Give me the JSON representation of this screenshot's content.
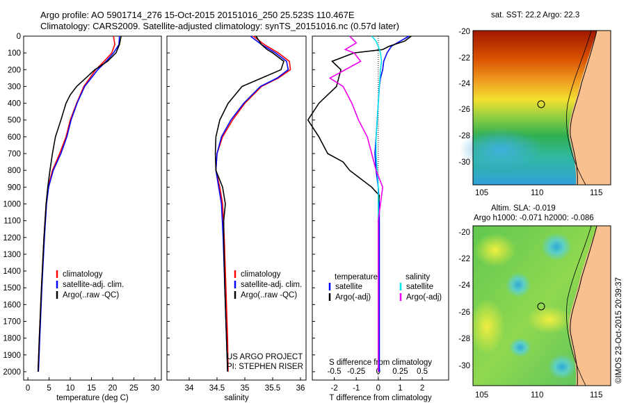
{
  "header": {
    "line1": "Argo profile: AO 5901714_276 15-Oct-2015 20151016_250 25.523S 110.467E",
    "line2": "Climatology: CARS2009. Satellite-adjusted climatology: synTS_20151016.nc (0.57d later)"
  },
  "depth_ticks": [
    "0",
    "100",
    "200",
    "300",
    "400",
    "500",
    "600",
    "700",
    "800",
    "900",
    "1000",
    "1100",
    "1200",
    "1300",
    "1400",
    "1500",
    "1600",
    "1700",
    "1800",
    "1900",
    "2000"
  ],
  "colors": {
    "climatology": "#ff0000",
    "satellite": "#0000ff",
    "argo": "#000000",
    "sal_sat": "#00e5ee",
    "sal_argo": "#ee00ee"
  },
  "chart_data": [
    {
      "type": "line",
      "name": "temperature-panel",
      "xlabel": "temperature (deg C)",
      "xlim": [
        -1,
        31.5
      ],
      "ylim": [
        2050,
        0
      ],
      "xticks": [
        "0",
        "5",
        "10",
        "15",
        "20",
        "25",
        "30"
      ],
      "xtick_values": [
        0,
        5,
        10,
        15,
        20,
        25,
        30
      ],
      "legend": [
        "climatology",
        "satellite-adj. clim.",
        "Argo(..raw -QC)"
      ],
      "series": [
        {
          "name": "climatology",
          "depth": [
            0,
            50,
            100,
            150,
            200,
            300,
            400,
            500,
            600,
            700,
            800,
            900,
            1000,
            1200,
            1500,
            1800,
            2000
          ],
          "values": [
            20.2,
            20.5,
            19.8,
            18.0,
            16.0,
            13.2,
            11.5,
            10.0,
            9.0,
            7.5,
            5.8,
            4.8,
            4.3,
            3.8,
            3.2,
            2.7,
            2.4
          ]
        },
        {
          "name": "satellite-adj. clim.",
          "depth": [
            0,
            50,
            100,
            150,
            200,
            300,
            400,
            500,
            600,
            700,
            800,
            900,
            1000,
            1200,
            1500,
            1800,
            2000
          ],
          "values": [
            21.6,
            21.5,
            20.2,
            18.5,
            16.5,
            13.4,
            11.6,
            10.2,
            9.2,
            7.8,
            6.0,
            4.9,
            4.4,
            3.9,
            3.3,
            2.8,
            2.5
          ]
        },
        {
          "name": "Argo(..raw -QC)",
          "depth": [
            0,
            50,
            100,
            150,
            200,
            300,
            350,
            400,
            500,
            600,
            700,
            800,
            900,
            1000,
            1200,
            1500,
            1800,
            2000
          ],
          "values": [
            22.0,
            21.6,
            20.8,
            18.8,
            15.8,
            11.5,
            10.0,
            9.0,
            7.8,
            6.5,
            5.8,
            5.2,
            4.7,
            4.3,
            3.8,
            3.2,
            2.7,
            2.4
          ]
        }
      ]
    },
    {
      "type": "line",
      "name": "salinity-panel",
      "xlabel": "salinity",
      "xlim": [
        33.6,
        36.1
      ],
      "ylim": [
        2050,
        0
      ],
      "xticks": [
        "34",
        "34.5",
        "35",
        "35.5",
        "36"
      ],
      "xtick_values": [
        34,
        34.5,
        35,
        35.5,
        36
      ],
      "legend": [
        "climatology",
        "satellite-adj. clim.",
        "Argo(..raw -QC)"
      ],
      "annotations": [
        "US ARGO PROJECT",
        "PI: STEPHEN RISER"
      ],
      "series": [
        {
          "name": "climatology",
          "depth": [
            0,
            50,
            100,
            150,
            200,
            250,
            300,
            400,
            500,
            600,
            700,
            800,
            900,
            1000,
            1200,
            1500,
            1800,
            2000
          ],
          "values": [
            35.15,
            35.35,
            35.6,
            35.8,
            35.82,
            35.6,
            35.3,
            35.0,
            34.78,
            34.6,
            34.5,
            34.48,
            34.55,
            34.6,
            34.63,
            34.66,
            34.69,
            34.7
          ]
        },
        {
          "name": "satellite-adj. clim.",
          "depth": [
            0,
            50,
            100,
            150,
            200,
            250,
            300,
            400,
            500,
            600,
            700,
            800,
            900,
            1000,
            1200,
            1500,
            1800,
            2000
          ],
          "values": [
            35.1,
            35.3,
            35.55,
            35.75,
            35.78,
            35.58,
            35.28,
            34.98,
            34.75,
            34.58,
            34.5,
            34.48,
            34.53,
            34.58,
            34.61,
            34.64,
            34.67,
            34.69
          ]
        },
        {
          "name": "Argo(..raw -QC)",
          "depth": [
            0,
            50,
            80,
            100,
            150,
            200,
            250,
            300,
            400,
            500,
            600,
            700,
            800,
            900,
            1000,
            1100,
            1200,
            1500,
            1800,
            2000
          ],
          "values": [
            35.2,
            35.3,
            35.4,
            35.5,
            35.7,
            35.65,
            35.3,
            34.95,
            34.7,
            34.55,
            34.48,
            34.47,
            34.48,
            34.6,
            34.65,
            34.62,
            34.62,
            34.64,
            34.67,
            34.69
          ]
        }
      ]
    },
    {
      "type": "line",
      "name": "difference-panel",
      "xlabel": "T difference from climatology",
      "xlabel_top": "S difference from climatology",
      "xlim": [
        -3,
        3.2
      ],
      "ylim": [
        2050,
        0
      ],
      "xticks": [
        "-2",
        "-1",
        "0",
        "1",
        "2"
      ],
      "xtick_values": [
        -2,
        -1,
        0,
        1,
        2
      ],
      "sticks": [
        "-0.5",
        "-0.25",
        "0",
        "0.25",
        "0.5"
      ],
      "stick_values": [
        -2,
        -1,
        0,
        1,
        2
      ],
      "legend_headers": [
        "temperature",
        "salinity"
      ],
      "legend": [
        "satellite",
        "Argo(-adj)",
        "satellite",
        "Argo(-adj)"
      ],
      "series": [
        {
          "name": "T satellite",
          "depth": [
            0,
            30,
            60,
            100,
            150,
            200,
            250,
            300,
            400,
            500,
            600,
            700,
            800,
            900,
            1000,
            1200,
            1500,
            2000
          ],
          "values": [
            1.4,
            1.0,
            0.6,
            0.4,
            0.25,
            0.2,
            0.1,
            0.05,
            0.0,
            -0.05,
            -0.1,
            -0.15,
            -0.1,
            0.0,
            0.05,
            0.05,
            0.05,
            0.05
          ]
        },
        {
          "name": "T Argo(-adj)",
          "depth": [
            0,
            30,
            60,
            80,
            100,
            150,
            200,
            250,
            300,
            400,
            500,
            600,
            700,
            750,
            800,
            850,
            900,
            950,
            1000,
            1200,
            1500,
            2000
          ],
          "values": [
            1.5,
            1.2,
            0.5,
            0.2,
            -1.1,
            -2.1,
            -1.7,
            -1.8,
            -1.9,
            -2.7,
            -3.2,
            -2.7,
            -2.3,
            -1.6,
            -1.3,
            -0.8,
            -0.3,
            0.05,
            0.0,
            0.0,
            0.0,
            0.0
          ]
        },
        {
          "name": "S satellite",
          "depth": [
            0,
            30,
            60,
            100,
            150,
            200,
            300,
            400,
            500,
            600,
            700,
            800,
            900,
            1000,
            1200,
            1500,
            2000
          ],
          "values": [
            -0.3,
            -0.1,
            0.0,
            0.1,
            0.15,
            0.1,
            0.05,
            0.0,
            -0.05,
            -0.1,
            -0.1,
            -0.05,
            0.0,
            0.0,
            0.0,
            0.0,
            0.0
          ]
        },
        {
          "name": "S Argo(-adj)",
          "depth": [
            0,
            40,
            80,
            100,
            150,
            250,
            300,
            400,
            500,
            600,
            700,
            800,
            900,
            1000,
            1100,
            1200,
            1500,
            2000
          ],
          "values": [
            -1.3,
            -1.0,
            -1.5,
            -1.1,
            -0.8,
            -2.2,
            -1.6,
            -1.2,
            -0.9,
            -0.5,
            -0.3,
            -0.1,
            0.2,
            0.1,
            0.0,
            0.0,
            0.0,
            0.0
          ]
        }
      ]
    }
  ],
  "map_top": {
    "title": "sat. SST: 22.2 Argo: 22.3",
    "xticks": [
      "105",
      "110",
      "115"
    ],
    "yticks": [
      "-20",
      "-22",
      "-24",
      "-26",
      "-28",
      "-30"
    ]
  },
  "map_bottom": {
    "title1": "Altim. SLA: -0.019",
    "title2": "Argo h1000: -0.071 h2000: -0.086",
    "xticks": [
      "105",
      "110",
      "115"
    ],
    "yticks": [
      "-20",
      "-22",
      "-24",
      "-26",
      "-28",
      "-30"
    ]
  },
  "watermark": "©IMOS 23-Oct-2015 20:39:37"
}
